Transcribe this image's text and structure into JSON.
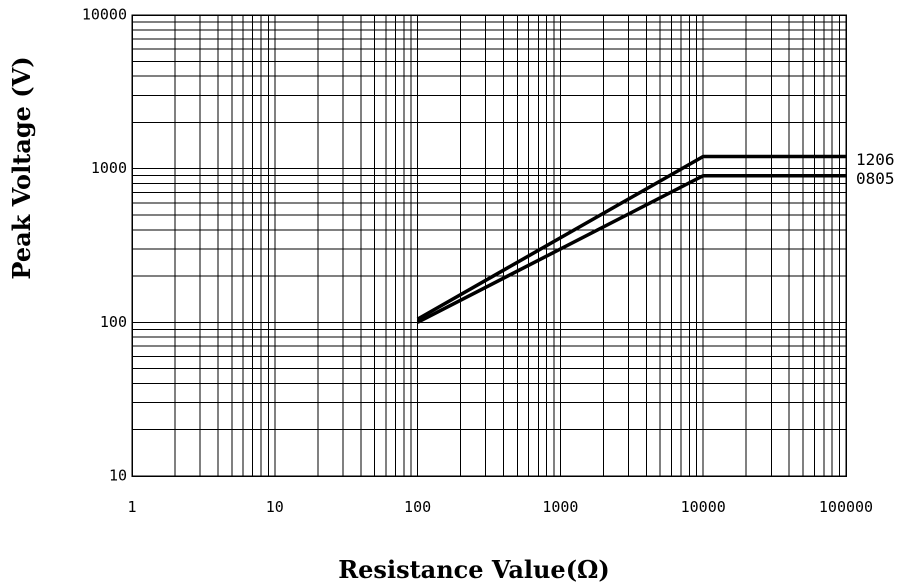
{
  "chart_data": {
    "type": "line",
    "title": "",
    "xlabel": "Resistance Value(Ω)",
    "ylabel": "Peak Voltage (V)",
    "xscale": "log",
    "yscale": "log",
    "xlim": [
      1,
      100000
    ],
    "ylim": [
      10,
      10000
    ],
    "grid": true,
    "x_ticks": [
      "1",
      "10",
      "100",
      "1000",
      "10000",
      "100000"
    ],
    "y_ticks": [
      "10",
      "100",
      "1000",
      "10000"
    ],
    "series": [
      {
        "name": "1206",
        "x": [
          100,
          10000,
          100000
        ],
        "y": [
          105,
          1200,
          1200
        ]
      },
      {
        "name": "0805",
        "x": [
          100,
          10000,
          100000
        ],
        "y": [
          100,
          900,
          900
        ]
      }
    ]
  }
}
